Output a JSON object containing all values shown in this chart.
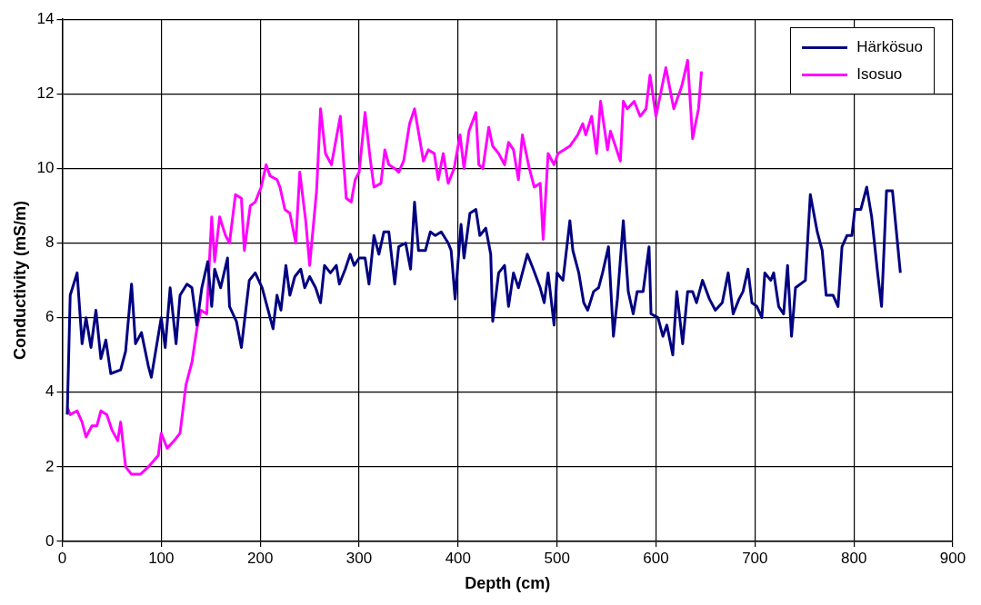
{
  "chart_data": {
    "type": "line",
    "xlabel": "Depth (cm)",
    "ylabel": "Conductivity (mS/m)",
    "xlim": [
      0,
      900
    ],
    "xticks": [
      0,
      100,
      200,
      300,
      400,
      500,
      600,
      700,
      800,
      900
    ],
    "ylim": [
      0,
      14
    ],
    "yticks": [
      0,
      2,
      4,
      6,
      8,
      10,
      12,
      14
    ],
    "grid": true,
    "legend": "top right",
    "marker": "none",
    "line_style": "solid",
    "series": [
      {
        "name": "Härkösuo",
        "color": "#000080",
        "x": [
          5,
          8,
          15,
          20,
          24,
          29,
          34,
          39,
          44,
          49,
          59,
          64,
          70,
          74,
          80,
          87,
          90,
          100,
          104,
          109,
          115,
          119,
          126,
          131,
          136,
          141,
          147,
          151,
          154,
          160,
          167,
          169,
          176,
          181,
          189,
          195,
          202,
          208,
          213,
          217,
          221,
          226,
          230,
          235,
          241,
          245,
          250,
          256,
          261,
          265,
          271,
          277,
          280,
          286,
          291,
          295,
          300,
          306,
          310,
          315,
          320,
          325,
          330,
          336,
          340,
          347,
          352,
          356,
          360,
          367,
          372,
          377,
          383,
          390,
          393,
          397,
          403,
          406,
          412,
          418,
          422,
          428,
          433,
          435,
          441,
          447,
          451,
          456,
          461,
          470,
          476,
          483,
          487,
          491,
          497,
          500,
          506,
          513,
          516,
          522,
          527,
          531,
          537,
          542,
          546,
          552,
          557,
          561,
          567,
          572,
          577,
          581,
          587,
          593,
          595,
          602,
          607,
          611,
          617,
          621,
          627,
          632,
          637,
          641,
          647,
          654,
          660,
          667,
          673,
          678,
          684,
          688,
          693,
          697,
          702,
          707,
          710,
          716,
          719,
          724,
          729,
          733,
          737,
          741,
          751,
          756,
          763,
          768,
          772,
          779,
          784,
          788,
          793,
          798,
          801,
          807,
          813,
          818,
          824,
          828,
          833,
          839,
          847
        ],
        "values": [
          3.4,
          6.6,
          7.2,
          5.3,
          6.0,
          5.2,
          6.2,
          4.9,
          5.4,
          4.5,
          4.6,
          5.1,
          6.9,
          5.3,
          5.6,
          4.7,
          4.4,
          6.0,
          5.2,
          6.8,
          5.3,
          6.6,
          6.9,
          6.8,
          5.8,
          6.8,
          7.5,
          6.3,
          7.3,
          6.8,
          7.6,
          6.3,
          5.9,
          5.2,
          7.0,
          7.2,
          6.8,
          6.2,
          5.7,
          6.6,
          6.2,
          7.4,
          6.6,
          7.1,
          7.3,
          6.8,
          7.1,
          6.8,
          6.4,
          7.4,
          7.2,
          7.4,
          6.9,
          7.3,
          7.7,
          7.4,
          7.6,
          7.6,
          6.9,
          8.2,
          7.7,
          8.3,
          8.3,
          6.9,
          7.9,
          8.0,
          7.3,
          9.1,
          7.8,
          7.8,
          8.3,
          8.2,
          8.3,
          8.0,
          7.8,
          6.5,
          8.5,
          7.6,
          8.8,
          8.9,
          8.2,
          8.4,
          7.7,
          5.9,
          7.2,
          7.4,
          6.3,
          7.2,
          6.8,
          7.7,
          7.3,
          6.8,
          6.4,
          7.2,
          5.8,
          7.2,
          7.0,
          8.6,
          7.8,
          7.2,
          6.4,
          6.2,
          6.7,
          6.8,
          7.2,
          7.9,
          5.5,
          6.5,
          8.6,
          6.7,
          6.1,
          6.7,
          6.7,
          7.9,
          6.1,
          6.0,
          5.5,
          5.8,
          5.0,
          6.7,
          5.3,
          6.7,
          6.7,
          6.4,
          7.0,
          6.5,
          6.2,
          6.4,
          7.2,
          6.1,
          6.5,
          6.7,
          7.3,
          6.4,
          6.3,
          6.0,
          7.2,
          7.0,
          7.2,
          6.3,
          6.1,
          7.4,
          5.5,
          6.8,
          7.0,
          9.3,
          8.3,
          7.8,
          6.6,
          6.6,
          6.3,
          7.9,
          8.2,
          8.2,
          8.9,
          8.9,
          9.5,
          8.7,
          7.2,
          6.3,
          9.4,
          9.4,
          7.2
        ]
      },
      {
        "name": "Isosuo",
        "color": "#ff00ff",
        "x": [
          5,
          8,
          15,
          20,
          24,
          30,
          35,
          39,
          45,
          50,
          56,
          59,
          64,
          70,
          79,
          87,
          97,
          100,
          106,
          113,
          119,
          125,
          131,
          136,
          140,
          146,
          151,
          154,
          159,
          165,
          169,
          175,
          181,
          184,
          190,
          195,
          201,
          206,
          210,
          217,
          220,
          225,
          230,
          236,
          240,
          246,
          250,
          257,
          261,
          266,
          272,
          281,
          287,
          292,
          296,
          300,
          306,
          311,
          315,
          322,
          326,
          330,
          336,
          340,
          345,
          351,
          356,
          365,
          370,
          376,
          380,
          385,
          390,
          396,
          402,
          406,
          411,
          418,
          421,
          425,
          431,
          435,
          441,
          447,
          451,
          456,
          461,
          465,
          472,
          477,
          483,
          486,
          491,
          497,
          501,
          507,
          513,
          521,
          526,
          529,
          535,
          540,
          544,
          551,
          554,
          564,
          567,
          571,
          578,
          584,
          590,
          594,
          600,
          610,
          618,
          626,
          632,
          637,
          643,
          646
        ],
        "values": [
          3.6,
          3.4,
          3.5,
          3.2,
          2.8,
          3.1,
          3.1,
          3.5,
          3.4,
          3.0,
          2.7,
          3.2,
          2.0,
          1.8,
          1.8,
          2.0,
          2.3,
          2.9,
          2.5,
          2.7,
          2.9,
          4.2,
          4.8,
          5.7,
          6.2,
          6.1,
          8.7,
          7.5,
          8.7,
          8.2,
          8.0,
          9.3,
          9.2,
          7.8,
          9.0,
          9.1,
          9.5,
          10.1,
          9.8,
          9.7,
          9.5,
          8.9,
          8.8,
          8.0,
          9.9,
          8.6,
          7.4,
          9.4,
          11.6,
          10.4,
          10.1,
          11.4,
          9.2,
          9.1,
          9.7,
          9.9,
          11.5,
          10.3,
          9.5,
          9.6,
          10.5,
          10.1,
          10.0,
          9.9,
          10.2,
          11.2,
          11.6,
          10.2,
          10.5,
          10.4,
          9.7,
          10.4,
          9.6,
          10.0,
          10.9,
          10.0,
          11.0,
          11.5,
          10.1,
          10.0,
          11.1,
          10.6,
          10.4,
          10.1,
          10.7,
          10.5,
          9.7,
          10.9,
          10.0,
          9.5,
          9.6,
          8.1,
          10.4,
          10.1,
          10.4,
          10.5,
          10.6,
          10.9,
          11.2,
          10.9,
          11.4,
          10.4,
          11.8,
          10.5,
          11.0,
          10.2,
          11.8,
          11.6,
          11.8,
          11.4,
          11.6,
          12.5,
          11.4,
          12.7,
          11.6,
          12.2,
          12.9,
          10.8,
          11.6,
          12.6
        ]
      }
    ]
  }
}
